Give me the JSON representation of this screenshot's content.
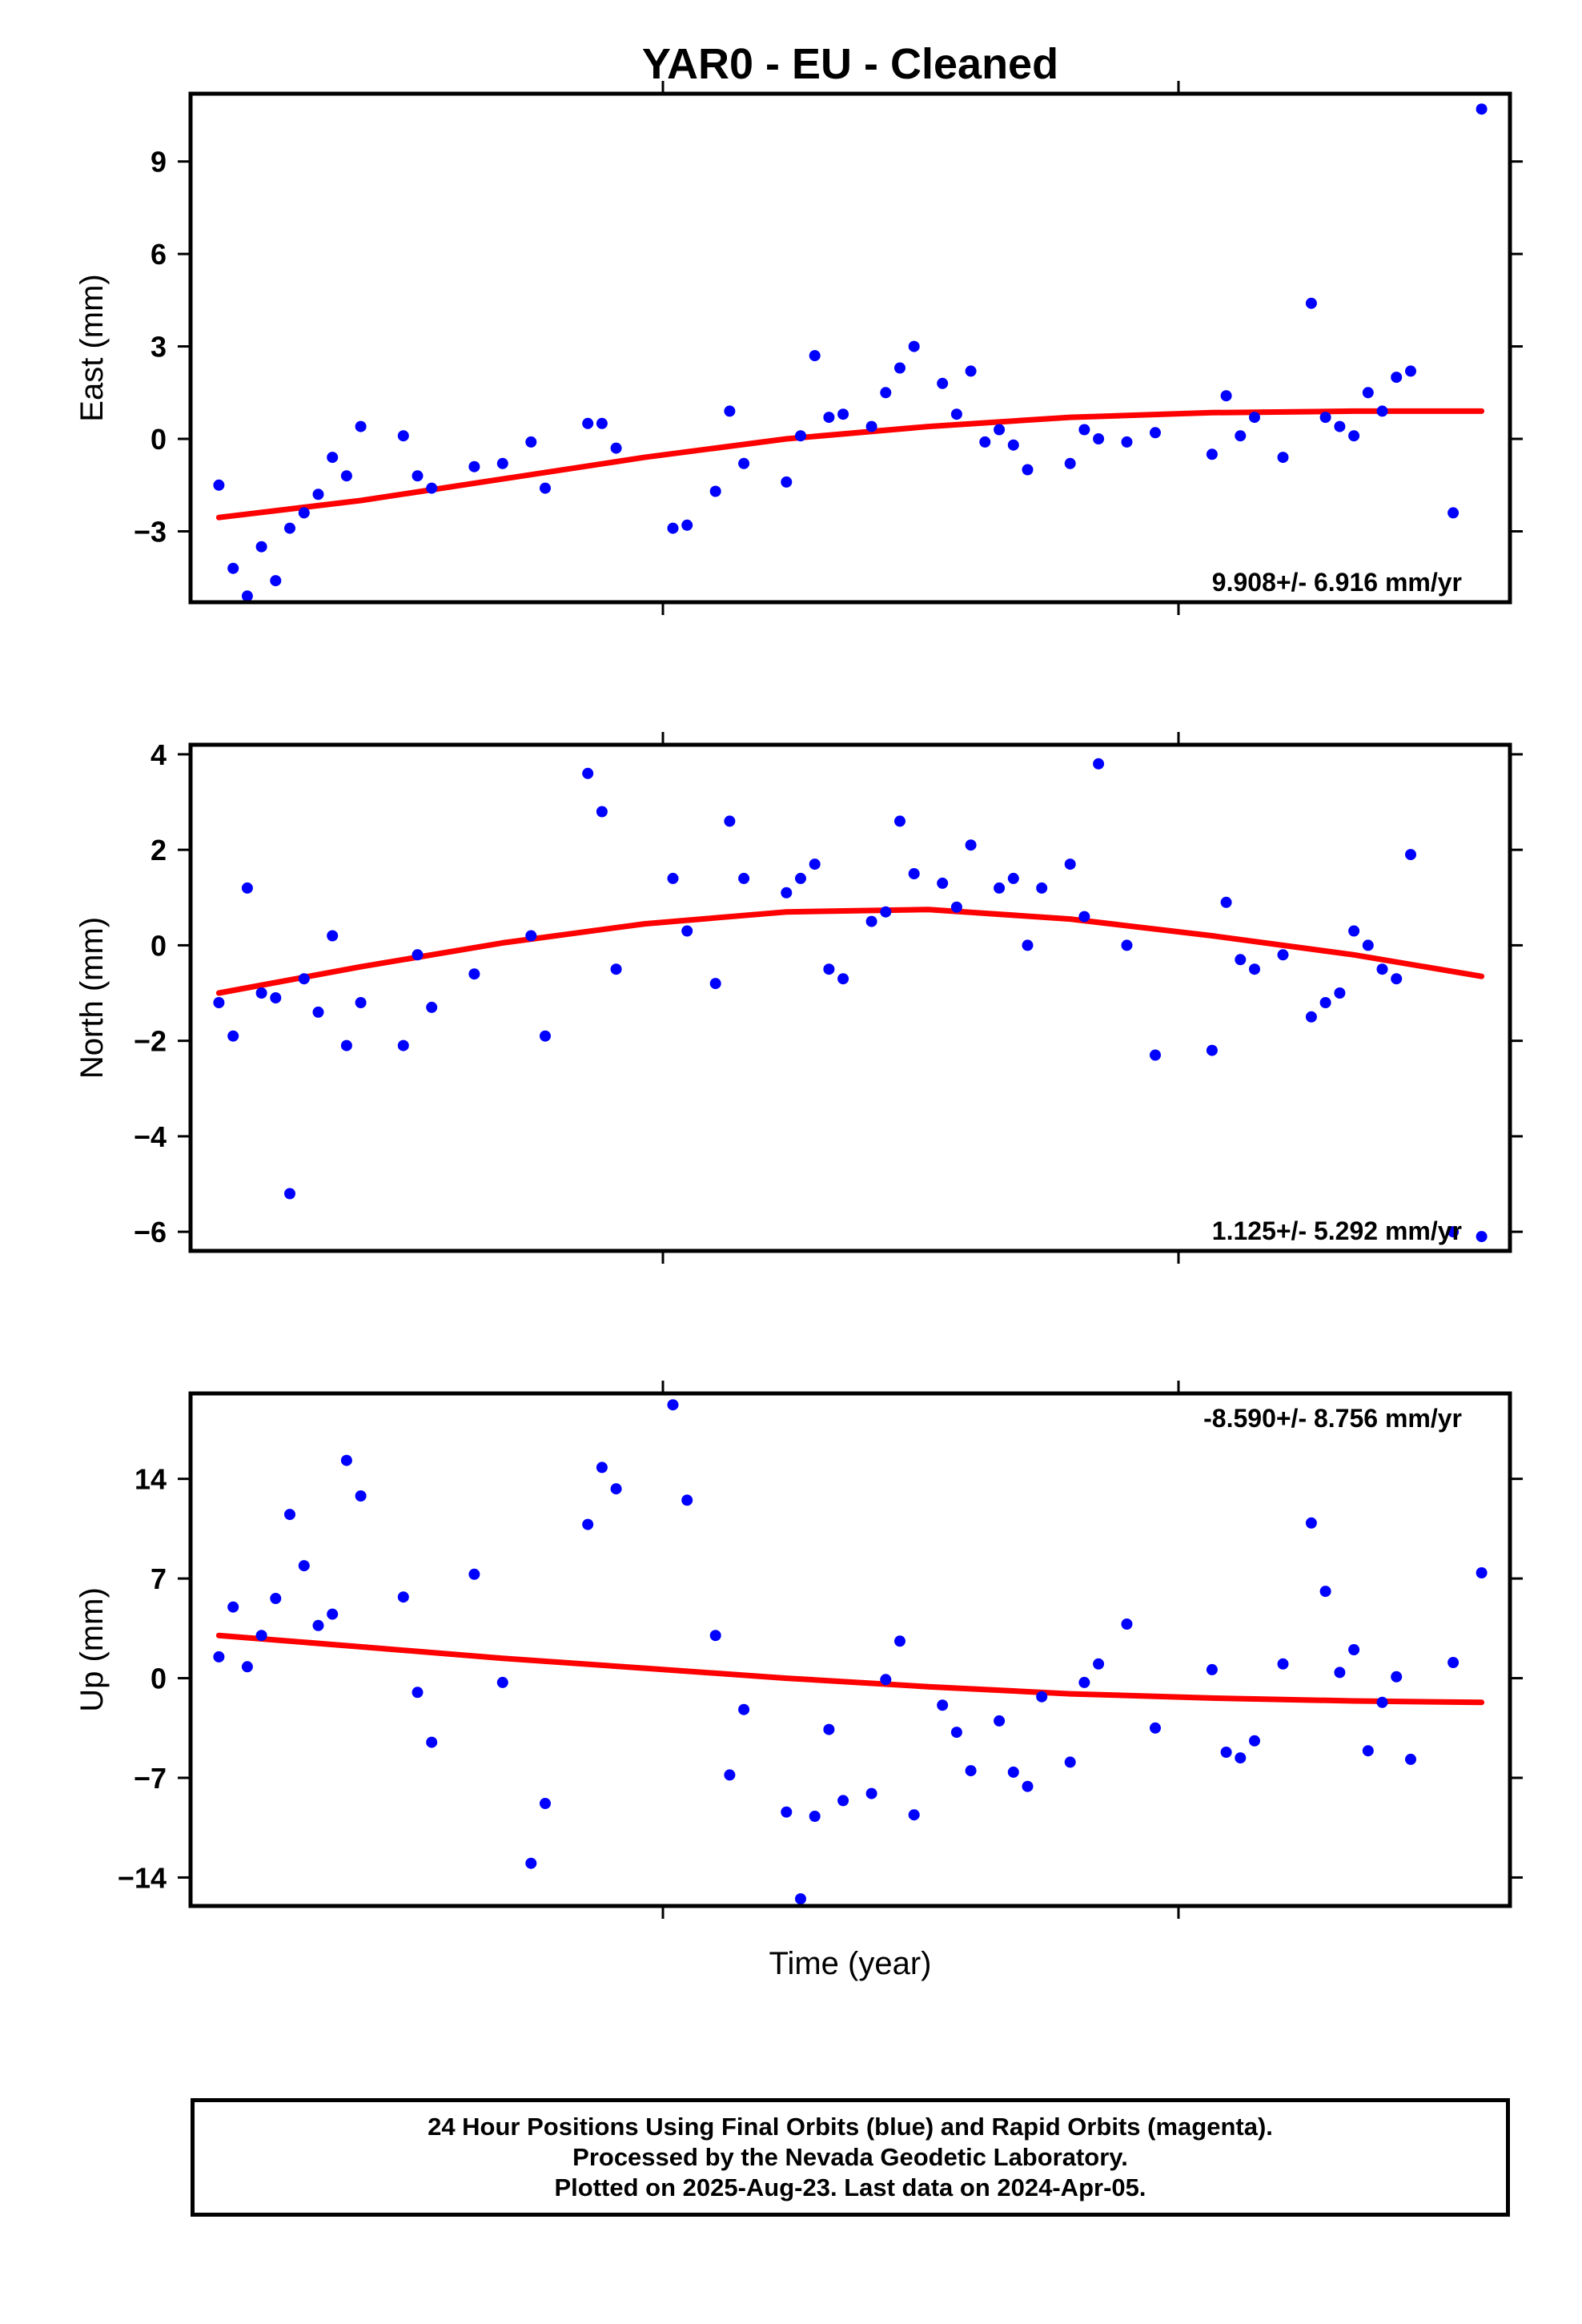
{
  "chart_data": {
    "type": "scatter",
    "title": "YAR0  - EU - Cleaned",
    "xlabel": "Time (year)",
    "xlim": [
      0,
      93
    ],
    "x_tick_labels": [],
    "series_colors": {
      "final": "#0000ff",
      "rapid": "#ff00ff",
      "fit": "#ff0000"
    },
    "footer": [
      "24 Hour Positions Using Final Orbits (blue) and Rapid Orbits (magenta).",
      "Processed by the Nevada Geodetic Laboratory.",
      "Plotted on 2025-Aug-23. Last data on 2024-Apr-05."
    ],
    "panels": [
      {
        "name": "east",
        "ylabel": "East (mm)",
        "ylim": [
          -5.3,
          11.2
        ],
        "yticks": [
          -3,
          0,
          3,
          6,
          9
        ],
        "ytick_labels": [
          "−3",
          "0",
          "3",
          "6",
          "9"
        ],
        "rate_text": "9.908+/- 6.916 mm/yr",
        "rate_position": "bottom-right",
        "points": [
          [
            2,
            -1.5
          ],
          [
            3,
            -4.2
          ],
          [
            4,
            -5.1
          ],
          [
            5,
            -3.5
          ],
          [
            6,
            -4.6
          ],
          [
            7,
            -2.9
          ],
          [
            8,
            -2.4
          ],
          [
            9,
            -1.8
          ],
          [
            10,
            -0.6
          ],
          [
            11,
            -1.2
          ],
          [
            12,
            0.4
          ],
          [
            15,
            0.1
          ],
          [
            16,
            -1.2
          ],
          [
            17,
            -1.6
          ],
          [
            20,
            -0.9
          ],
          [
            22,
            -0.8
          ],
          [
            24,
            -0.1
          ],
          [
            25,
            -1.6
          ],
          [
            28,
            0.5
          ],
          [
            29,
            0.5
          ],
          [
            30,
            -0.3
          ],
          [
            34,
            -2.9
          ],
          [
            35,
            -2.8
          ],
          [
            37,
            -1.7
          ],
          [
            38,
            0.9
          ],
          [
            39,
            -0.8
          ],
          [
            42,
            -1.4
          ],
          [
            43,
            0.1
          ],
          [
            44,
            2.7
          ],
          [
            45,
            0.7
          ],
          [
            46,
            0.8
          ],
          [
            48,
            0.4
          ],
          [
            49,
            1.5
          ],
          [
            50,
            2.3
          ],
          [
            51,
            3.0
          ],
          [
            53,
            1.8
          ],
          [
            54,
            0.8
          ],
          [
            55,
            2.2
          ],
          [
            56,
            -0.1
          ],
          [
            57,
            0.3
          ],
          [
            58,
            -0.2
          ],
          [
            59,
            -1.0
          ],
          [
            62,
            -0.8
          ],
          [
            63,
            0.3
          ],
          [
            64,
            0.0
          ],
          [
            66,
            -0.1
          ],
          [
            68,
            0.2
          ],
          [
            72,
            -0.5
          ],
          [
            73,
            1.4
          ],
          [
            74,
            0.1
          ],
          [
            75,
            0.7
          ],
          [
            77,
            -0.6
          ],
          [
            79,
            4.4
          ],
          [
            80,
            0.7
          ],
          [
            81,
            0.4
          ],
          [
            82,
            0.1
          ],
          [
            83,
            1.5
          ],
          [
            84,
            0.9
          ],
          [
            85,
            2.0
          ],
          [
            86,
            2.2
          ],
          [
            89,
            -2.4
          ],
          [
            91,
            10.7
          ]
        ],
        "fit": [
          [
            2,
            -2.55
          ],
          [
            12,
            -2.0
          ],
          [
            22,
            -1.3
          ],
          [
            32,
            -0.6
          ],
          [
            42,
            0.0
          ],
          [
            52,
            0.4
          ],
          [
            62,
            0.7
          ],
          [
            72,
            0.85
          ],
          [
            82,
            0.9
          ],
          [
            91,
            0.9
          ]
        ]
      },
      {
        "name": "north",
        "ylabel": "North (mm)",
        "ylim": [
          -6.4,
          4.2
        ],
        "yticks": [
          -6,
          -4,
          -2,
          0,
          2,
          4
        ],
        "ytick_labels": [
          "−6",
          "−4",
          "−2",
          "0",
          "2",
          "4"
        ],
        "rate_text": "1.125+/- 5.292 mm/yr",
        "rate_position": "bottom-right",
        "points": [
          [
            2,
            -1.2
          ],
          [
            3,
            -1.9
          ],
          [
            4,
            1.2
          ],
          [
            5,
            -1.0
          ],
          [
            6,
            -1.1
          ],
          [
            7,
            -5.2
          ],
          [
            8,
            -0.7
          ],
          [
            9,
            -1.4
          ],
          [
            10,
            0.2
          ],
          [
            11,
            -2.1
          ],
          [
            12,
            -1.2
          ],
          [
            15,
            -2.1
          ],
          [
            16,
            -0.2
          ],
          [
            17,
            -1.3
          ],
          [
            20,
            -0.6
          ],
          [
            24,
            0.2
          ],
          [
            25,
            -1.9
          ],
          [
            28,
            3.6
          ],
          [
            29,
            2.8
          ],
          [
            30,
            -0.5
          ],
          [
            34,
            1.4
          ],
          [
            35,
            0.3
          ],
          [
            37,
            -0.8
          ],
          [
            38,
            2.6
          ],
          [
            39,
            1.4
          ],
          [
            42,
            1.1
          ],
          [
            43,
            1.4
          ],
          [
            44,
            1.7
          ],
          [
            45,
            -0.5
          ],
          [
            46,
            -0.7
          ],
          [
            48,
            0.5
          ],
          [
            49,
            0.7
          ],
          [
            50,
            2.6
          ],
          [
            51,
            1.5
          ],
          [
            53,
            1.3
          ],
          [
            54,
            0.8
          ],
          [
            55,
            2.1
          ],
          [
            57,
            1.2
          ],
          [
            58,
            1.4
          ],
          [
            59,
            0.0
          ],
          [
            60,
            1.2
          ],
          [
            62,
            1.7
          ],
          [
            63,
            0.6
          ],
          [
            64,
            3.8
          ],
          [
            66,
            0.0
          ],
          [
            68,
            -2.3
          ],
          [
            72,
            -2.2
          ],
          [
            73,
            0.9
          ],
          [
            74,
            -0.3
          ],
          [
            75,
            -0.5
          ],
          [
            77,
            -0.2
          ],
          [
            79,
            -1.5
          ],
          [
            80,
            -1.2
          ],
          [
            81,
            -1.0
          ],
          [
            82,
            0.3
          ],
          [
            83,
            0.0
          ],
          [
            84,
            -0.5
          ],
          [
            85,
            -0.7
          ],
          [
            86,
            1.9
          ],
          [
            89,
            -6.0
          ],
          [
            91,
            -6.1
          ]
        ],
        "fit": [
          [
            2,
            -1.0
          ],
          [
            12,
            -0.45
          ],
          [
            22,
            0.05
          ],
          [
            32,
            0.45
          ],
          [
            42,
            0.7
          ],
          [
            52,
            0.75
          ],
          [
            62,
            0.55
          ],
          [
            72,
            0.2
          ],
          [
            82,
            -0.2
          ],
          [
            91,
            -0.65
          ]
        ]
      },
      {
        "name": "up",
        "ylabel": "Up (mm)",
        "ylim": [
          -16,
          20
        ],
        "yticks": [
          -14,
          -7,
          0,
          7,
          14
        ],
        "ytick_labels": [
          "−14",
          "−7",
          "0",
          "7",
          "14"
        ],
        "rate_text": "-8.590+/- 8.756 mm/yr",
        "rate_position": "top-right",
        "points": [
          [
            2,
            1.5
          ],
          [
            3,
            5.0
          ],
          [
            4,
            0.8
          ],
          [
            5,
            3.0
          ],
          [
            6,
            5.6
          ],
          [
            7,
            11.5
          ],
          [
            8,
            7.9
          ],
          [
            9,
            3.7
          ],
          [
            10,
            4.5
          ],
          [
            11,
            15.3
          ],
          [
            12,
            12.8
          ],
          [
            15,
            5.7
          ],
          [
            16,
            -1.0
          ],
          [
            17,
            -4.5
          ],
          [
            20,
            7.3
          ],
          [
            22,
            -0.3
          ],
          [
            24,
            -13.0
          ],
          [
            25,
            -8.8
          ],
          [
            28,
            10.8
          ],
          [
            29,
            14.8
          ],
          [
            30,
            13.3
          ],
          [
            34,
            19.2
          ],
          [
            35,
            12.5
          ],
          [
            37,
            3.0
          ],
          [
            38,
            -6.8
          ],
          [
            39,
            -2.2
          ],
          [
            42,
            -9.4
          ],
          [
            43,
            -15.5
          ],
          [
            44,
            -9.7
          ],
          [
            45,
            -3.6
          ],
          [
            46,
            -8.6
          ],
          [
            48,
            -8.1
          ],
          [
            49,
            -0.1
          ],
          [
            50,
            2.6
          ],
          [
            51,
            -9.6
          ],
          [
            53,
            -1.9
          ],
          [
            54,
            -3.8
          ],
          [
            55,
            -6.5
          ],
          [
            57,
            -3.0
          ],
          [
            58,
            -6.6
          ],
          [
            59,
            -7.6
          ],
          [
            60,
            -1.3
          ],
          [
            62,
            -5.9
          ],
          [
            63,
            -0.3
          ],
          [
            64,
            1.0
          ],
          [
            66,
            3.8
          ],
          [
            68,
            -3.5
          ],
          [
            72,
            0.6
          ],
          [
            73,
            -5.2
          ],
          [
            74,
            -5.6
          ],
          [
            75,
            -4.4
          ],
          [
            77,
            1.0
          ],
          [
            79,
            10.9
          ],
          [
            80,
            6.1
          ],
          [
            81,
            0.4
          ],
          [
            82,
            2.0
          ],
          [
            83,
            -5.1
          ],
          [
            84,
            -1.7
          ],
          [
            85,
            0.1
          ],
          [
            86,
            -5.7
          ],
          [
            89,
            1.1
          ],
          [
            91,
            7.4
          ]
        ],
        "fit": [
          [
            2,
            3.0
          ],
          [
            12,
            2.2
          ],
          [
            22,
            1.4
          ],
          [
            32,
            0.7
          ],
          [
            42,
            0.0
          ],
          [
            52,
            -0.6
          ],
          [
            62,
            -1.1
          ],
          [
            72,
            -1.4
          ],
          [
            82,
            -1.6
          ],
          [
            91,
            -1.7
          ]
        ]
      }
    ]
  }
}
